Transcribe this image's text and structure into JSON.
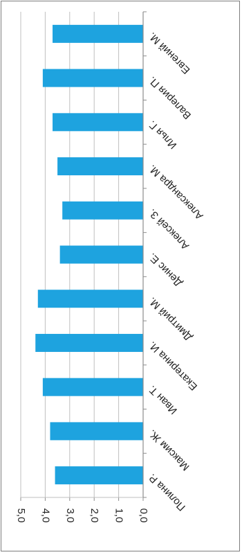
{
  "chart_data": {
    "type": "bar",
    "orientation": "horizontal",
    "rotation": "page rotated 90 degrees clockwise; value axis runs right-to-left from 0,0 to 5,0",
    "categories": [
      "Полина Р.",
      "Максим Ж.",
      "Иван Т.",
      "Екатерина И.",
      "Дмитрий М.",
      "Денис Е.",
      "Алексей З.",
      "Александра М.",
      "Илья Г.",
      "Валерия П.",
      "Евгений М."
    ],
    "values": [
      3.6,
      3.8,
      4.1,
      4.4,
      4.3,
      3.4,
      3.3,
      3.5,
      3.7,
      4.1,
      3.7
    ],
    "value_ticks": [
      "0,0",
      "1,0",
      "2,0",
      "3,0",
      "4,0",
      "5,0"
    ],
    "ylim": [
      0,
      5
    ],
    "grid": true,
    "bar_color": "#1ea3df",
    "grid_color": "#bfbfbf",
    "axis_color": "#8c8c8c",
    "text_color": "#222222"
  }
}
